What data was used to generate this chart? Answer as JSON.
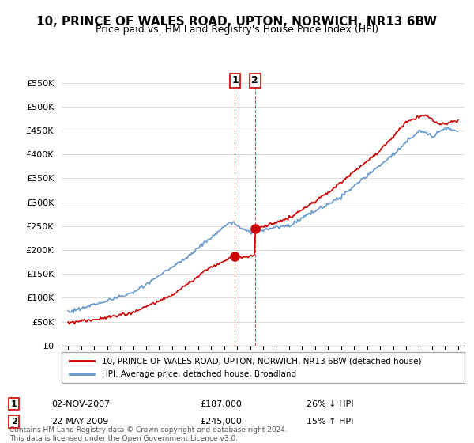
{
  "title": "10, PRINCE OF WALES ROAD, UPTON, NORWICH, NR13 6BW",
  "subtitle": "Price paid vs. HM Land Registry's House Price Index (HPI)",
  "ylim": [
    0,
    575000
  ],
  "yticks": [
    0,
    50000,
    100000,
    150000,
    200000,
    250000,
    300000,
    350000,
    400000,
    450000,
    500000,
    550000
  ],
  "ytick_labels": [
    "£0",
    "£50K",
    "£100K",
    "£150K",
    "£200K",
    "£250K",
    "£300K",
    "£350K",
    "£400K",
    "£450K",
    "£500K",
    "£550K"
  ],
  "transaction1": {
    "date": "02-NOV-2007",
    "price": 187000,
    "hpi_rel": "26% ↓ HPI",
    "label": "1"
  },
  "transaction2": {
    "date": "22-MAY-2009",
    "price": 245000,
    "hpi_rel": "15% ↑ HPI",
    "label": "2"
  },
  "transaction1_x": 2007.84,
  "transaction2_x": 2009.38,
  "red_line_color": "#cc0000",
  "blue_line_color": "#6699cc",
  "marker_color1": "#cc0000",
  "marker_color2": "#cc0000",
  "legend_label1": "10, PRINCE OF WALES ROAD, UPTON, NORWICH, NR13 6BW (detached house)",
  "legend_label2": "HPI: Average price, detached house, Broadland",
  "footer": "Contains HM Land Registry data © Crown copyright and database right 2024.\nThis data is licensed under the Open Government Licence v3.0.",
  "background_color": "#ffffff",
  "grid_color": "#dddddd"
}
